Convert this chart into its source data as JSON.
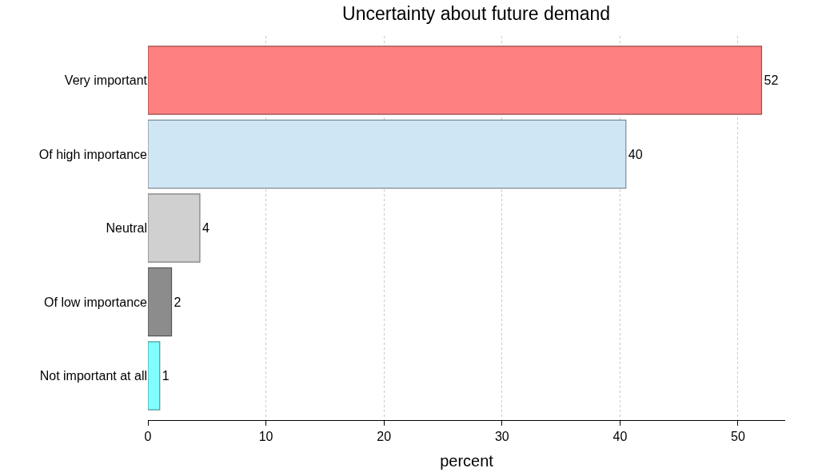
{
  "chart_data": {
    "type": "bar",
    "orientation": "horizontal",
    "title": "Uncertainty about future demand",
    "xlabel": "percent",
    "categories": [
      "Very important",
      "Of high importance",
      "Neutral",
      "Of low importance",
      "Not important at all"
    ],
    "values": [
      52,
      40.5,
      4.4,
      2,
      1
    ],
    "value_labels": [
      "52",
      "40",
      "4",
      "2",
      "1"
    ],
    "colors": [
      "#ff8080",
      "#cfe6f5",
      "#d0d0d0",
      "#8c8c8c",
      "#80ffff"
    ],
    "xlim": [
      0,
      54
    ],
    "xticks": [
      0,
      10,
      20,
      30,
      40,
      50
    ],
    "grid": "x"
  }
}
